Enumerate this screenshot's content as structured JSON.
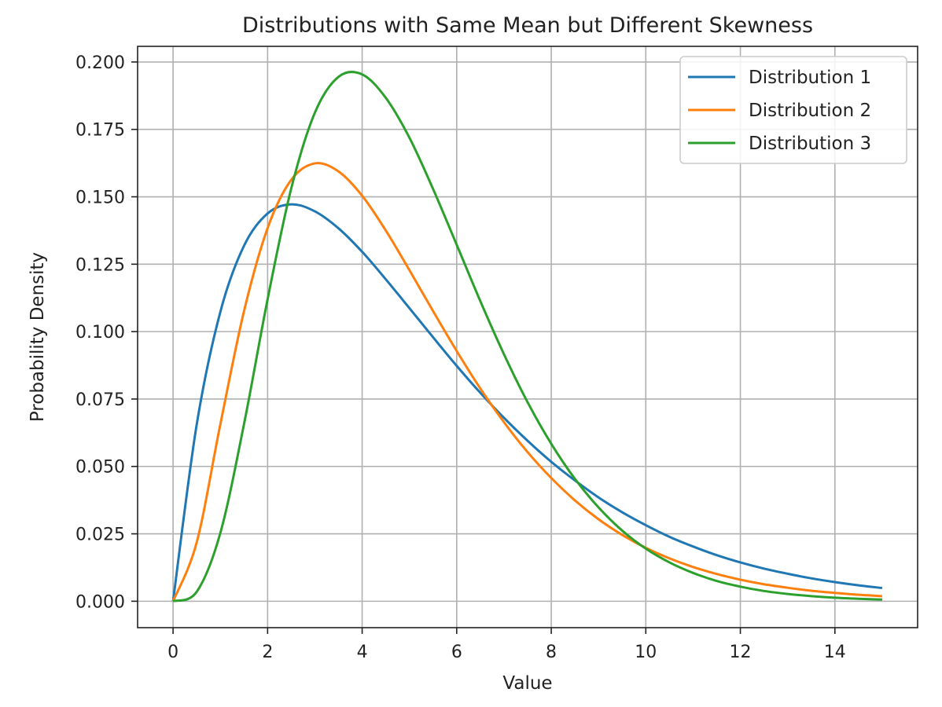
{
  "chart_data": {
    "type": "line",
    "title": "Distributions with Same Mean but Different Skewness",
    "xlabel": "Value",
    "ylabel": "Probability Density",
    "xlim": [
      -0.75,
      15.75
    ],
    "ylim": [
      -0.0098,
      0.2058
    ],
    "xticks": [
      0,
      2,
      4,
      6,
      8,
      10,
      12,
      14
    ],
    "xtick_labels": [
      "0",
      "2",
      "4",
      "6",
      "8",
      "10",
      "12",
      "14"
    ],
    "yticks": [
      0.0,
      0.025,
      0.05,
      0.075,
      0.1,
      0.125,
      0.15,
      0.175,
      0.2
    ],
    "ytick_labels": [
      "0.000",
      "0.025",
      "0.050",
      "0.075",
      "0.100",
      "0.125",
      "0.150",
      "0.175",
      "0.200"
    ],
    "grid": true,
    "legend": "top-right",
    "x": [
      0,
      0.5,
      1,
      1.5,
      2,
      2.5,
      3,
      3.5,
      4,
      4.5,
      5,
      5.5,
      6,
      6.5,
      7,
      7.5,
      8,
      8.5,
      9,
      9.5,
      10,
      10.5,
      11,
      11.5,
      12,
      12.5,
      13,
      13.5,
      14,
      14.5,
      15
    ],
    "series": [
      {
        "name": "Distribution 1",
        "color": "#1f77b4",
        "values": [
          0.0,
          0.0655,
          0.1073,
          0.1318,
          0.1438,
          0.1472,
          0.1446,
          0.1383,
          0.1296,
          0.1194,
          0.1087,
          0.0979,
          0.0873,
          0.0773,
          0.068,
          0.0595,
          0.0517,
          0.0448,
          0.0385,
          0.033,
          0.0282,
          0.0239,
          0.0203,
          0.0171,
          0.0144,
          0.0121,
          0.0102,
          0.0085,
          0.0071,
          0.0059,
          0.0049
        ]
      },
      {
        "name": "Distribution 2",
        "color": "#ff7f0e",
        "values": [
          0.0,
          0.0218,
          0.0656,
          0.1075,
          0.1384,
          0.1563,
          0.1624,
          0.1594,
          0.1504,
          0.1375,
          0.1228,
          0.1076,
          0.0928,
          0.0789,
          0.0664,
          0.0553,
          0.0457,
          0.0374,
          0.0304,
          0.0246,
          0.0198,
          0.0159,
          0.0127,
          0.0101,
          0.008,
          0.0063,
          0.005,
          0.0039,
          0.0031,
          0.0024,
          0.0019
        ]
      },
      {
        "name": "Distribution 3",
        "color": "#2ca02c",
        "values": [
          0.0,
          0.0035,
          0.0253,
          0.0656,
          0.112,
          0.1531,
          0.1812,
          0.1945,
          0.1954,
          0.1867,
          0.1719,
          0.1529,
          0.1322,
          0.1113,
          0.0916,
          0.0738,
          0.0584,
          0.0454,
          0.0348,
          0.0262,
          0.0195,
          0.0144,
          0.0105,
          0.0075,
          0.0054,
          0.0038,
          0.0027,
          0.0019,
          0.0013,
          0.0009,
          0.0006
        ]
      }
    ]
  }
}
